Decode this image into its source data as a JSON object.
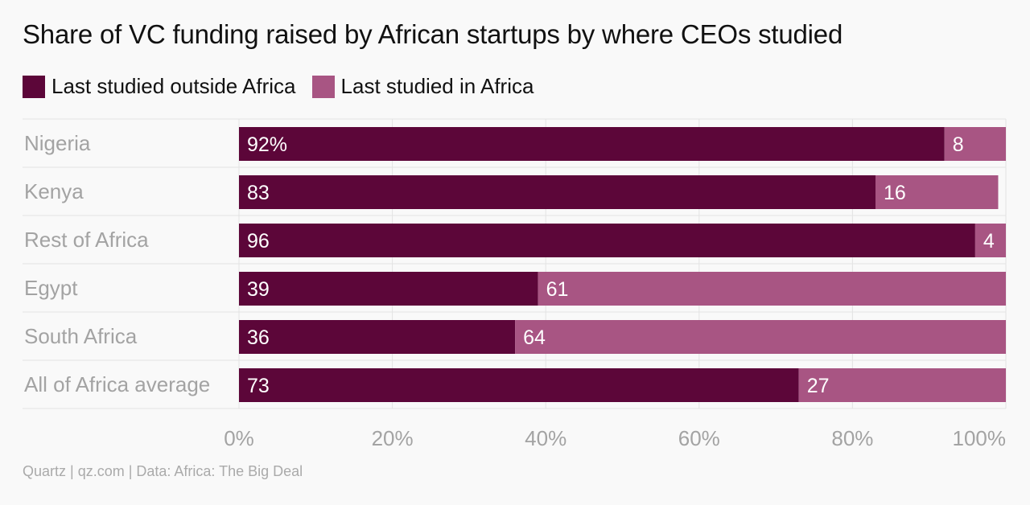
{
  "title": "Share of VC funding raised by African startups by where CEOs studied",
  "source": "Quartz | qz.com | Data: Africa: The Big Deal",
  "legend": [
    {
      "label": "Last studied outside Africa",
      "color": "#5c0639"
    },
    {
      "label": "Last studied in Africa",
      "color": "#a85583"
    }
  ],
  "chart_data": {
    "type": "bar",
    "orientation": "horizontal",
    "stacked": true,
    "categories": [
      "Nigeria",
      "Kenya",
      "Rest of Africa",
      "Egypt",
      "South Africa",
      "All of Africa average"
    ],
    "series": [
      {
        "name": "Last studied outside Africa",
        "values": [
          92,
          83,
          96,
          39,
          36,
          73
        ],
        "color": "#5c0639"
      },
      {
        "name": "Last studied in Africa",
        "values": [
          8,
          16,
          4,
          61,
          64,
          27
        ],
        "color": "#a85583"
      }
    ],
    "data_labels": {
      "Last studied outside Africa": [
        "92%",
        "83",
        "96",
        "39",
        "36",
        "73"
      ],
      "Last studied in Africa": [
        "8",
        "16",
        "4",
        "61",
        "64",
        "27"
      ]
    },
    "xlim": [
      0,
      100
    ],
    "xticks": [
      "0%",
      "20%",
      "40%",
      "60%",
      "80%",
      "100%"
    ],
    "grid": true,
    "legend_position": "top-left"
  }
}
